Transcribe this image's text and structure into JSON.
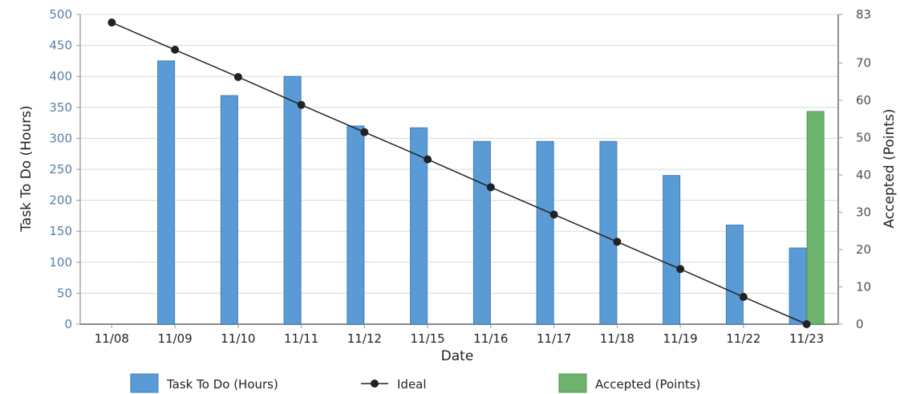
{
  "chart_data": {
    "type": "bar",
    "categories": [
      "11/08",
      "11/09",
      "11/10",
      "11/11",
      "11/12",
      "11/15",
      "11/16",
      "11/17",
      "11/18",
      "11/19",
      "11/22",
      "11/23"
    ],
    "xlabel": "Date",
    "ylabel": "Task To Do (Hours)",
    "y2label": "Accepted (Points)",
    "ylim": [
      0,
      500
    ],
    "y2lim": [
      0,
      83
    ],
    "yticks": [
      0,
      50,
      100,
      150,
      200,
      250,
      300,
      350,
      400,
      450,
      500
    ],
    "y2ticks": [
      0,
      10,
      20,
      30,
      40,
      50,
      60,
      70,
      83
    ],
    "grid": true,
    "legend_position": "bottom",
    "series": [
      {
        "name": "Task To Do (Hours)",
        "kind": "bar",
        "axis": "left",
        "color": "#5b9bd5",
        "values": [
          null,
          425,
          369,
          400,
          320,
          317,
          295,
          295,
          295,
          240,
          160,
          123
        ]
      },
      {
        "name": "Ideal",
        "kind": "line",
        "axis": "left",
        "color": "#222222",
        "values": [
          487,
          443,
          399,
          354,
          310,
          266,
          221,
          177,
          133,
          89,
          44,
          0
        ]
      },
      {
        "name": "Accepted (Points)",
        "kind": "bar",
        "axis": "right",
        "color": "#6db36d",
        "values": [
          null,
          null,
          null,
          null,
          null,
          null,
          null,
          null,
          null,
          null,
          null,
          57
        ]
      }
    ]
  }
}
